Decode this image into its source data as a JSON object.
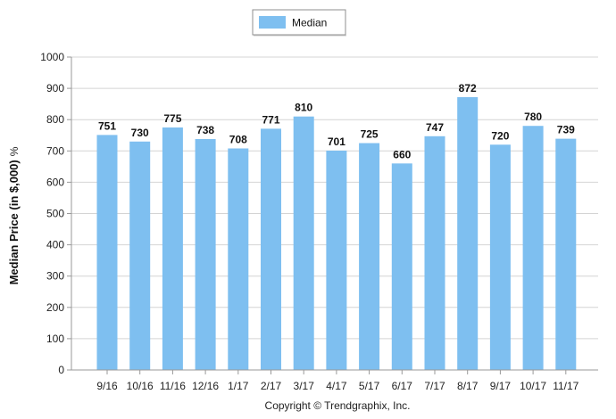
{
  "chart_data": {
    "type": "bar",
    "categories": [
      "9/16",
      "10/16",
      "11/16",
      "12/16",
      "1/17",
      "2/17",
      "3/17",
      "4/17",
      "5/17",
      "6/17",
      "7/17",
      "8/17",
      "9/17",
      "10/17",
      "11/17"
    ],
    "series": [
      {
        "name": "Median",
        "values": [
          751,
          730,
          775,
          738,
          708,
          771,
          810,
          701,
          725,
          660,
          747,
          872,
          720,
          780,
          739
        ],
        "color": "#7ebff0"
      }
    ],
    "ylabel": "Median Price (in $,000)",
    "ylabel_suffix": "%",
    "xlabel": "",
    "ylim": [
      0,
      1000
    ],
    "yticks": [
      0,
      100,
      200,
      300,
      400,
      500,
      600,
      700,
      800,
      900,
      1000
    ],
    "grid": true,
    "legend_position": "top"
  },
  "footer": {
    "copyright": "Copyright © Trendgraphix, Inc."
  }
}
